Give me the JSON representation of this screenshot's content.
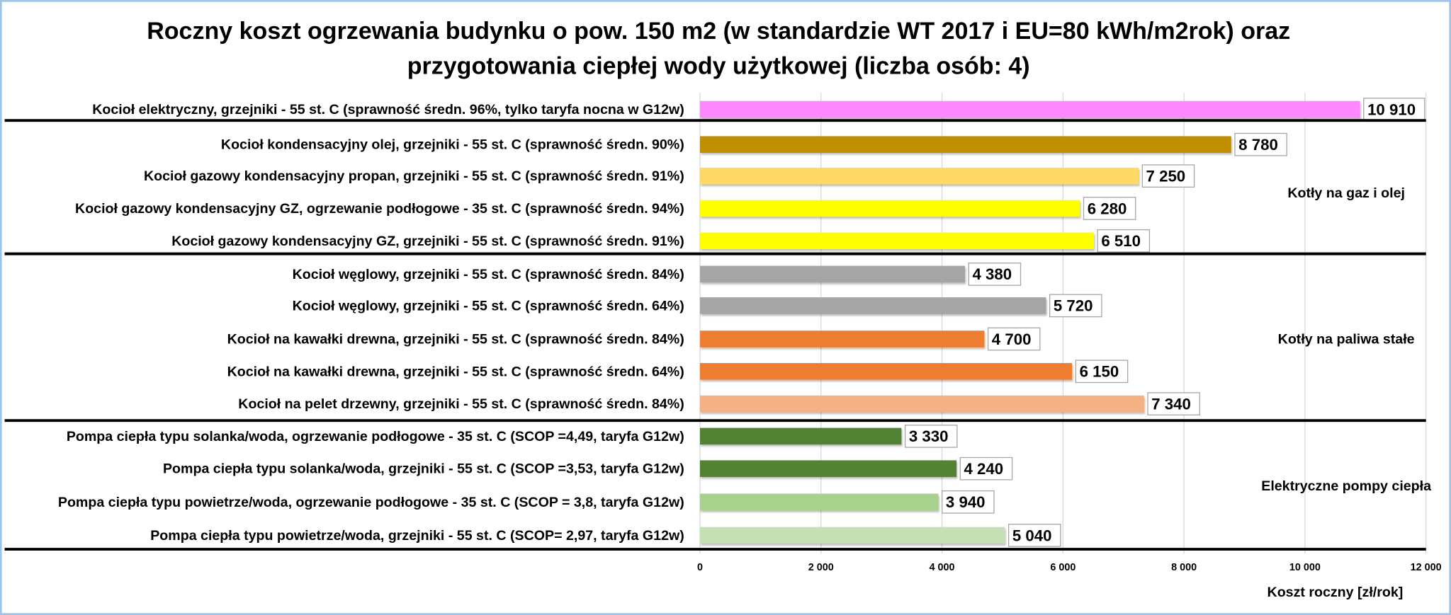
{
  "chart_data": {
    "type": "bar",
    "orientation": "horizontal",
    "title": [
      "Roczny koszt ogrzewania budynku o pow. 150 m2 (w standardzie WT 2017 i EU=80 kWh/m2rok) oraz",
      "przygotowania ciepłej wody użytkowej (liczba osób: 4)"
    ],
    "xlabel": "Koszt roczny [zł/rok]",
    "xlim": [
      0,
      12000
    ],
    "xticks": [
      0,
      2000,
      4000,
      6000,
      8000,
      10000,
      12000
    ],
    "xtick_labels": [
      "0",
      "2 000",
      "4 000",
      "6 000",
      "8 000",
      "10 000",
      "12 000"
    ],
    "grid": "vertical",
    "categories": [
      "Kocioł  elektryczny,  grzejniki - 55 st. C  (sprawność średn. 96%, tylko taryfa nocna w G12w)",
      "Kocioł  kondensacyjny olej,  grzejniki - 55 st. C (sprawność średn. 90%)",
      "Kocioł gazowy kondensacyjny propan, grzejniki - 55 st. C (sprawność średn. 91%)",
      "Kocioł gazowy kondensacyjny GZ, ogrzewanie podłogowe - 35 st. C (sprawność średn. 94%)",
      "Kocioł gazowy kondensacyjny GZ, grzejniki - 55 st. C (sprawność średn. 91%)",
      "Kocioł węglowy,  grzejniki - 55 st. C (sprawność średn. 84%)",
      "Kocioł węglowy,  grzejniki - 55 st. C (sprawność średn. 64%)",
      "Kocioł na kawałki drewna, grzejniki - 55 st. C (sprawność średn. 84%)",
      "Kocioł na kawałki drewna, grzejniki - 55 st. C (sprawność średn. 64%)",
      "Kocioł na pelet drzewny, grzejniki - 55 st. C (sprawność średn. 84%)",
      "Pompa ciepła typu solanka/woda, ogrzewanie podłogowe - 35 st. C (SCOP =4,49, taryfa G12w)",
      "Pompa ciepła typu solanka/woda, grzejniki - 55 st. C (SCOP =3,53, taryfa G12w)",
      "Pompa ciepła typu powietrze/woda, ogrzewanie podłogowe - 35 st. C (SCOP = 3,8, taryfa G12w)",
      "Pompa ciepła typu powietrze/woda, grzejniki - 55 st. C (SCOP= 2,97, taryfa G12w)"
    ],
    "values": [
      10910,
      8780,
      7250,
      6280,
      6510,
      4380,
      5720,
      4700,
      6150,
      7340,
      3330,
      4240,
      3940,
      5040
    ],
    "data_labels": [
      "10 910",
      "8 780",
      "7 250",
      "6 280",
      "6 510",
      "4 380",
      "5 720",
      "4 700",
      "6 150",
      "7 340",
      "3 330",
      "4 240",
      "3 940",
      "5 040"
    ],
    "colors": [
      "#FF88FF",
      "#BF8F00",
      "#FFD966",
      "#FFFF00",
      "#FFFF00",
      "#A5A5A5",
      "#A5A5A5",
      "#ED7D31",
      "#ED7D31",
      "#F4B183",
      "#548235",
      "#548235",
      "#A9D18E",
      "#C5E0B4"
    ],
    "groups": [
      {
        "label": "Kotły na gaz i olej",
        "rows": [
          1,
          4
        ]
      },
      {
        "label": "Kotły na paliwa stałe",
        "rows": [
          5,
          9
        ]
      },
      {
        "label": "Elektryczne pompy ciepła",
        "rows": [
          10,
          13
        ]
      }
    ]
  }
}
